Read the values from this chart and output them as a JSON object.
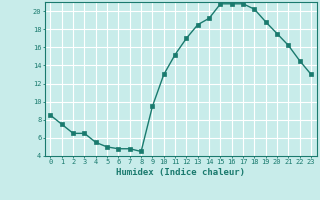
{
  "x": [
    0,
    1,
    2,
    3,
    4,
    5,
    6,
    7,
    8,
    9,
    10,
    11,
    12,
    13,
    14,
    15,
    16,
    17,
    18,
    19,
    20,
    21,
    22,
    23
  ],
  "y": [
    8.5,
    7.5,
    6.5,
    6.5,
    5.5,
    5.0,
    4.8,
    4.8,
    4.5,
    9.5,
    13.0,
    15.2,
    17.0,
    18.5,
    19.2,
    20.8,
    20.8,
    20.8,
    20.2,
    18.8,
    17.5,
    16.2,
    14.5,
    13.0
  ],
  "xlabel": "Humidex (Indice chaleur)",
  "bg_color": "#c8ecea",
  "line_color": "#1a7a6e",
  "markersize": 2.5,
  "ylim": [
    4,
    21
  ],
  "xlim": [
    -0.5,
    23.5
  ],
  "yticks": [
    4,
    6,
    8,
    10,
    12,
    14,
    16,
    18,
    20
  ],
  "xticks": [
    0,
    1,
    2,
    3,
    4,
    5,
    6,
    7,
    8,
    9,
    10,
    11,
    12,
    13,
    14,
    15,
    16,
    17,
    18,
    19,
    20,
    21,
    22,
    23
  ],
  "grid_color": "#ffffff",
  "tick_color": "#1a7a6e",
  "label_color": "#1a7a6e",
  "axis_color": "#1a7a6e",
  "tick_fontsize": 5.0,
  "label_fontsize": 6.5
}
